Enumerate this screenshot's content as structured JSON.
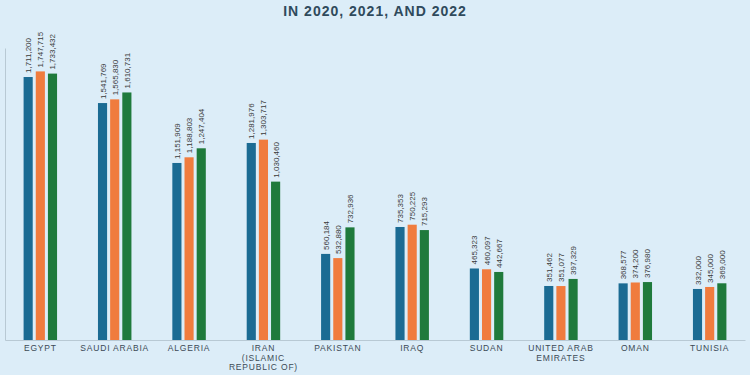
{
  "chart_data": {
    "type": "bar",
    "title": "IN 2020, 2021, AND 2022",
    "categories": [
      "EGYPT",
      "SAUDI ARABIA",
      "ALGERIA",
      "IRAN (ISLAMIC REPUBLIC OF)",
      "PAKISTAN",
      "IRAQ",
      "SUDAN",
      "UNITED ARAB EMIRATES",
      "OMAN",
      "TUNISIA"
    ],
    "series": [
      {
        "color": "#1b6b93",
        "values": [
          1711200,
          1541769,
          1151909,
          1281976,
          560184,
          735353,
          465323,
          351462,
          368577,
          332000
        ],
        "value_labels": [
          "1,711,200",
          "1,541,769",
          "1,151,909",
          "1,281,976",
          "560,184",
          "735,353",
          "465,323",
          "351,462",
          "368,577",
          "332,000"
        ]
      },
      {
        "color": "#f07c3e",
        "values": [
          1747715,
          1565830,
          1188803,
          1303717,
          532880,
          750225,
          460097,
          351077,
          374200,
          345000
        ],
        "value_labels": [
          "1,747,715",
          "1,565,830",
          "1,188,803",
          "1,303,717",
          "532,880",
          "750,225",
          "460,097",
          "351,077",
          "374,200",
          "345,000"
        ]
      },
      {
        "color": "#1f7a3c",
        "values": [
          1733432,
          1610731,
          1247404,
          1030460,
          732936,
          715293,
          442667,
          397329,
          376980,
          369000
        ],
        "value_labels": [
          "1,733,432",
          "1,610,731",
          "1,247,404",
          "1,030,460",
          "732,936",
          "715,293",
          "442,667",
          "397,329",
          "376,980",
          "369,000"
        ]
      }
    ],
    "ylim": [
      0,
      1900000
    ],
    "data_labels": true,
    "tick_labels": "x",
    "grid": false
  }
}
